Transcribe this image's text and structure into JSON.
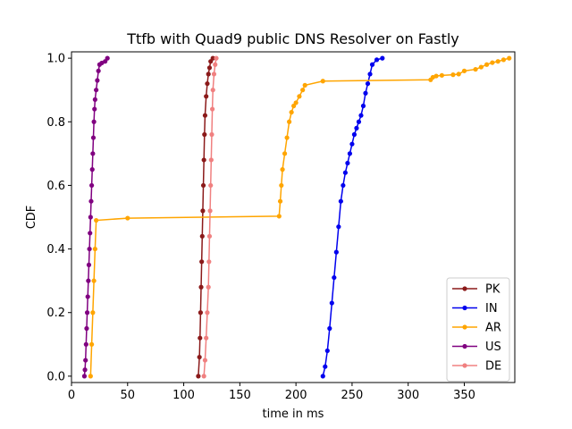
{
  "chart_data": {
    "type": "line",
    "title": "Ttfb with Quad9 public DNS Resolver on Fastly",
    "xlabel": "time in ms",
    "ylabel": "CDF",
    "xlim": [
      0,
      395
    ],
    "ylim": [
      -0.02,
      1.02
    ],
    "xticks": [
      0,
      50,
      100,
      150,
      200,
      250,
      300,
      350
    ],
    "yticks": [
      0.0,
      0.2,
      0.4,
      0.6,
      0.8,
      1.0
    ],
    "xtick_labels": [
      "0",
      "50",
      "100",
      "150",
      "200",
      "250",
      "300",
      "350"
    ],
    "ytick_labels": [
      "0.0",
      "0.2",
      "0.4",
      "0.6",
      "0.8",
      "1.0"
    ],
    "grid": false,
    "legend": "lower-right",
    "series": [
      {
        "name": "PK",
        "color": "#8b1a1a",
        "x": [
          113,
          114,
          114.5,
          115,
          115.5,
          116,
          116.5,
          117,
          117.5,
          118,
          118.5,
          119,
          120,
          121,
          122,
          123,
          124,
          126
        ],
        "y": [
          0.0,
          0.06,
          0.12,
          0.2,
          0.28,
          0.36,
          0.44,
          0.52,
          0.6,
          0.68,
          0.76,
          0.82,
          0.88,
          0.92,
          0.95,
          0.97,
          0.99,
          1.0
        ]
      },
      {
        "name": "IN",
        "color": "#0000ee",
        "x": [
          224,
          226,
          228,
          230,
          232,
          234,
          236,
          238,
          240,
          242,
          244,
          246,
          248,
          250,
          252,
          254,
          256,
          258,
          260,
          262,
          264,
          266,
          268,
          272,
          277
        ],
        "y": [
          0.0,
          0.03,
          0.08,
          0.15,
          0.23,
          0.31,
          0.39,
          0.47,
          0.55,
          0.6,
          0.64,
          0.67,
          0.7,
          0.73,
          0.76,
          0.78,
          0.8,
          0.82,
          0.85,
          0.89,
          0.92,
          0.95,
          0.98,
          0.995,
          1.0
        ]
      },
      {
        "name": "AR",
        "color": "#ffa500",
        "x": [
          17,
          18,
          19,
          20,
          21,
          22,
          50,
          185,
          186,
          187,
          188,
          190,
          192,
          194,
          196,
          198,
          200,
          203,
          206,
          208,
          224,
          320,
          322,
          325,
          330,
          340,
          345,
          350,
          360,
          365,
          370,
          375,
          380,
          385,
          390
        ],
        "y": [
          0.0,
          0.1,
          0.2,
          0.3,
          0.4,
          0.49,
          0.497,
          0.503,
          0.55,
          0.6,
          0.65,
          0.7,
          0.75,
          0.8,
          0.83,
          0.85,
          0.86,
          0.88,
          0.9,
          0.915,
          0.928,
          0.932,
          0.94,
          0.944,
          0.946,
          0.948,
          0.95,
          0.96,
          0.965,
          0.972,
          0.98,
          0.986,
          0.99,
          0.995,
          1.0
        ]
      },
      {
        "name": "US",
        "color": "#800080",
        "x": [
          11.5,
          12,
          12.5,
          13,
          13.5,
          14,
          14.5,
          15,
          15.5,
          16,
          16.5,
          17,
          17.5,
          18,
          18.5,
          19,
          19.5,
          20,
          20.5,
          21,
          22,
          23,
          24,
          25,
          27,
          30,
          32
        ],
        "y": [
          0.0,
          0.02,
          0.05,
          0.1,
          0.15,
          0.2,
          0.25,
          0.3,
          0.35,
          0.4,
          0.45,
          0.5,
          0.55,
          0.6,
          0.65,
          0.7,
          0.75,
          0.8,
          0.84,
          0.87,
          0.9,
          0.93,
          0.96,
          0.98,
          0.985,
          0.99,
          1.0
        ]
      },
      {
        "name": "DE",
        "color": "#f08080",
        "x": [
          118,
          119,
          120,
          121,
          122,
          122.5,
          123,
          123.5,
          124,
          124.5,
          125,
          125.5,
          126,
          127,
          128,
          129
        ],
        "y": [
          0.0,
          0.05,
          0.12,
          0.2,
          0.28,
          0.36,
          0.44,
          0.52,
          0.6,
          0.68,
          0.76,
          0.84,
          0.9,
          0.95,
          0.98,
          1.0
        ]
      }
    ]
  }
}
